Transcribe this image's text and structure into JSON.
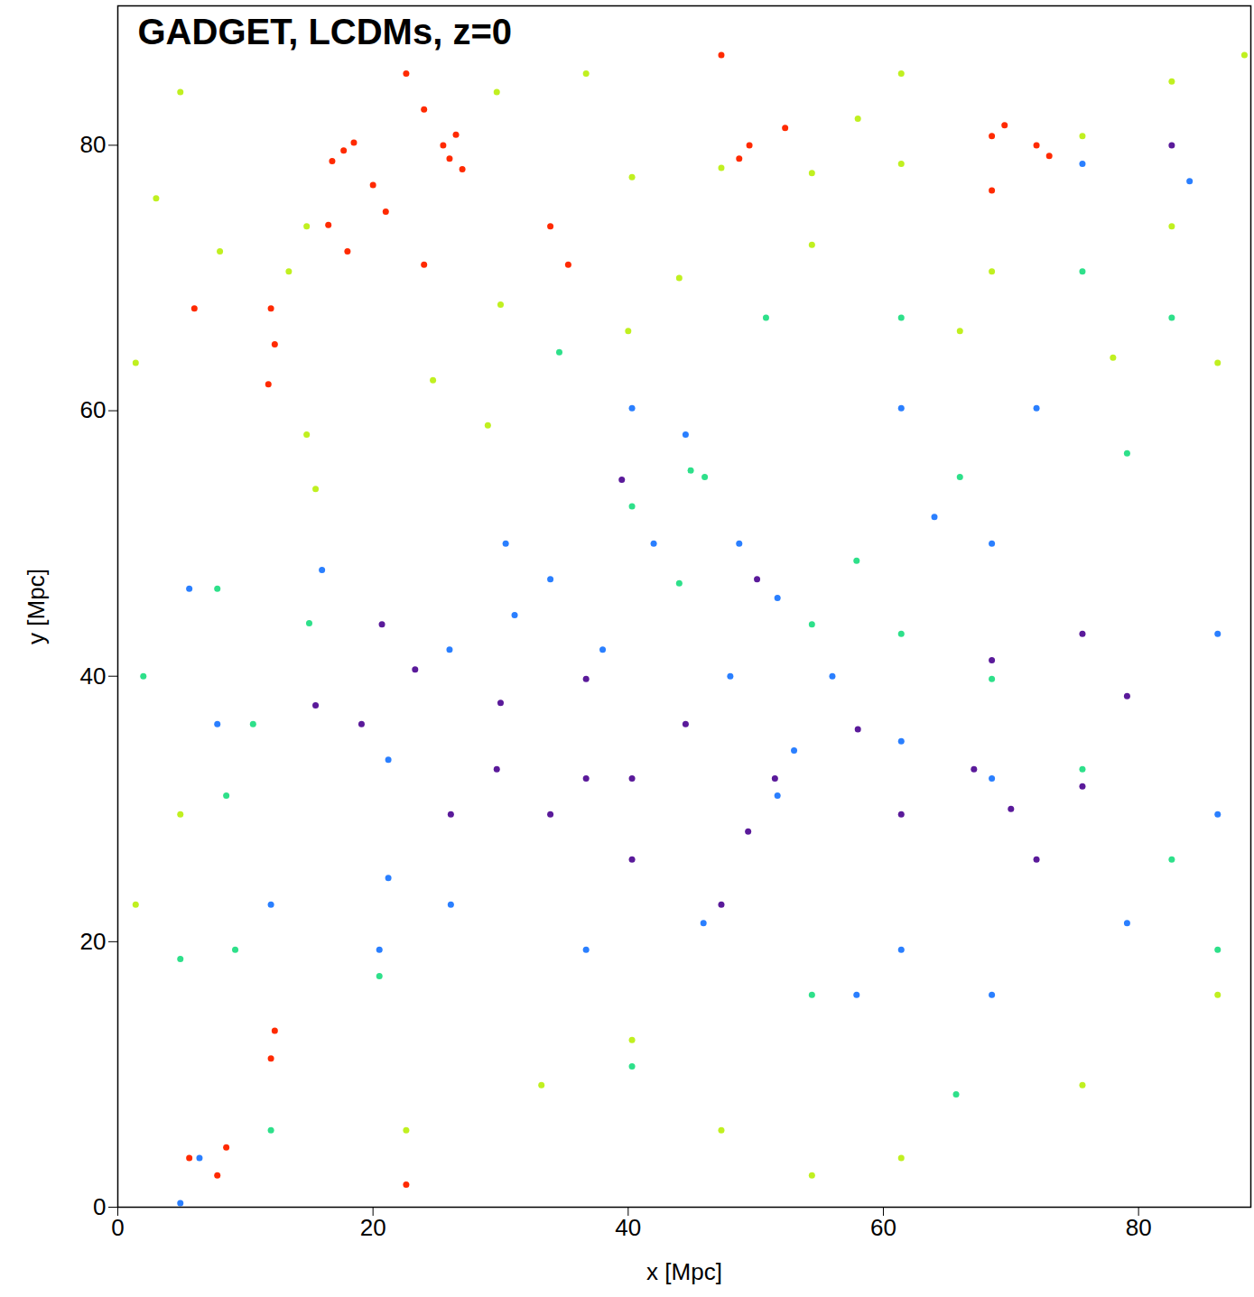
{
  "chart_data": {
    "type": "scatter",
    "title": "GADGET, LCDMs, z=0",
    "x_label": "x [Mpc]",
    "y_label": "y [Mpc]",
    "xlim": [
      0,
      88.8
    ],
    "ylim": [
      0,
      90.5
    ],
    "xticks": [
      0,
      20,
      40,
      60,
      80
    ],
    "yticks": [
      0,
      20,
      40,
      60,
      80
    ],
    "marker": "dot",
    "series": [
      {
        "color": "#ff2a00",
        "x": [
          17.7,
          18.5,
          16.8,
          26,
          27,
          25.5,
          26.5,
          68.5,
          69.5,
          72,
          73,
          12,
          12.3,
          11.8,
          48.7,
          49.5,
          47.3,
          33.9,
          35.3,
          6,
          5.6,
          7.8,
          8.5,
          12,
          12.3,
          22.6,
          24,
          68.5,
          18,
          21,
          24,
          52.3,
          22.6,
          20,
          16.5
        ],
        "y": [
          79.6,
          80.2,
          78.8,
          79,
          78.2,
          80,
          80.8,
          80.7,
          81.5,
          80,
          79.2,
          67.7,
          65,
          62,
          79,
          80,
          86.8,
          73.9,
          71,
          67.7,
          3.7,
          2.4,
          4.5,
          11.2,
          13.3,
          85.4,
          82.7,
          76.6,
          72,
          75,
          71,
          81.3,
          1.7,
          77,
          74
        ]
      },
      {
        "color": "#c0f020",
        "x": [
          40.3,
          47.3,
          54.4,
          61.4,
          75.6,
          82.6,
          88.3,
          14.8,
          13.4,
          14.8,
          15.5,
          4.9,
          1.4,
          29.7,
          36.7,
          61.4,
          82.6,
          86.2,
          4.9,
          1.4,
          33.2,
          47.3,
          61.4,
          75.6,
          86.2,
          22.6,
          54.4,
          40.3,
          29,
          24.7,
          54.4,
          68.5,
          3,
          8,
          44,
          66,
          78,
          58,
          40,
          30
        ],
        "y": [
          77.6,
          78.3,
          77.9,
          78.6,
          80.7,
          84.8,
          86.8,
          73.9,
          70.5,
          58.2,
          54.1,
          84,
          63.6,
          84,
          85.4,
          85.4,
          73.9,
          63.6,
          29.6,
          22.8,
          9.2,
          5.8,
          3.7,
          9.2,
          16,
          5.8,
          2.4,
          12.6,
          58.9,
          62.3,
          72.5,
          70.5,
          76,
          72,
          70,
          66,
          64,
          82,
          66,
          68
        ]
      },
      {
        "color": "#2ee08a",
        "x": [
          40.3,
          44.9,
          54.4,
          57.9,
          8.5,
          9.2,
          61.4,
          68.5,
          75.6,
          82.6,
          86.2,
          4.9,
          12,
          20.5,
          40.3,
          54.4,
          65.7,
          61.4,
          75.6,
          82.6,
          7.8,
          10.6,
          50.8,
          34.6,
          79.1,
          46,
          44,
          2,
          15,
          66
        ],
        "y": [
          52.8,
          55.5,
          43.9,
          48.7,
          31,
          19.4,
          43.2,
          39.8,
          33,
          26.2,
          19.4,
          18.7,
          5.8,
          17.4,
          10.6,
          16,
          8.5,
          67,
          70.5,
          67,
          46.6,
          36.4,
          67,
          64.4,
          56.8,
          55,
          47,
          40,
          44,
          55
        ]
      },
      {
        "color": "#2a7fff",
        "x": [
          30.4,
          33.9,
          31.1,
          21.2,
          21.2,
          20.5,
          7.8,
          5.6,
          48.7,
          51.7,
          53,
          51.7,
          45.9,
          61.4,
          68.5,
          40.3,
          44.5,
          75.6,
          84,
          86.2,
          86.2,
          68.5,
          61.4,
          68.5,
          36.7,
          26.1,
          12,
          79.1,
          57.9,
          4.9,
          6.4,
          61.4,
          72,
          38,
          42,
          56,
          64,
          16,
          26,
          48
        ],
        "y": [
          50,
          47.3,
          44.6,
          33.7,
          24.8,
          19.4,
          36.4,
          46.6,
          50,
          45.9,
          34.4,
          31,
          21.4,
          35.1,
          32.3,
          60.2,
          58.2,
          78.6,
          77.3,
          43.2,
          29.6,
          50,
          19.4,
          16,
          19.4,
          22.8,
          22.8,
          21.4,
          16,
          0.3,
          3.7,
          60.2,
          60.2,
          42,
          50,
          40,
          52,
          48,
          42,
          40
        ]
      },
      {
        "color": "#5a1a9a",
        "x": [
          20.7,
          23.3,
          39.5,
          50.1,
          51.5,
          49.4,
          47.3,
          36.7,
          40.3,
          29.7,
          67.1,
          75.6,
          79.1,
          75.6,
          68.5,
          72,
          36.7,
          44.5,
          33.9,
          40.3,
          26.1,
          19.1,
          82.6,
          61.4,
          15.5,
          30,
          58,
          70
        ],
        "y": [
          43.9,
          40.5,
          54.8,
          47.3,
          32.3,
          28.3,
          22.8,
          32.3,
          32.3,
          33,
          33,
          31.7,
          38.5,
          43.2,
          41.2,
          26.2,
          39.8,
          36.4,
          29.6,
          26.2,
          29.6,
          36.4,
          80,
          29.6,
          37.8,
          38,
          36,
          30
        ]
      }
    ]
  }
}
